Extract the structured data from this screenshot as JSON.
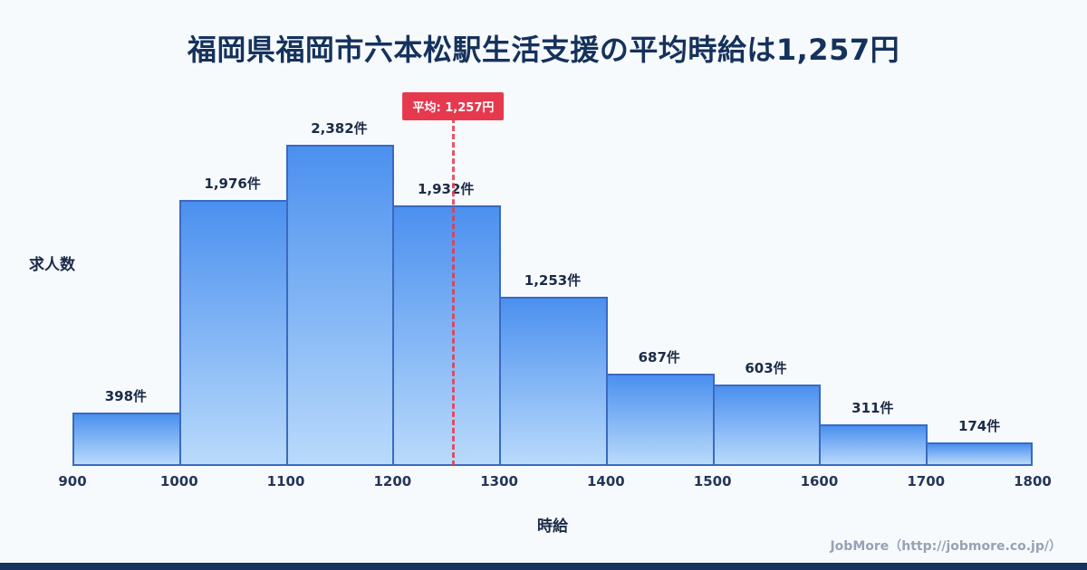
{
  "title": "福岡県福岡市六本松駅生活支援の平均時給は1,257円",
  "chart_data": {
    "type": "bar",
    "subtype": "histogram",
    "title": "福岡県福岡市六本松駅生活支援の平均時給は1,257円",
    "xlabel": "時給",
    "ylabel": "求人数",
    "categories": [
      "900",
      "1000",
      "1100",
      "1200",
      "1300",
      "1400",
      "1500",
      "1600",
      "1700",
      "1800"
    ],
    "x_range": [
      900,
      1800
    ],
    "values": [
      398,
      1976,
      2382,
      1932,
      1253,
      687,
      603,
      311,
      174
    ],
    "value_labels": [
      "398件",
      "1,976件",
      "2,382件",
      "1,932件",
      "1,253件",
      "687件",
      "603件",
      "311件",
      "174件"
    ],
    "ylim": [
      0,
      2600
    ],
    "grid": false,
    "legend": "none",
    "average": {
      "value": 1257,
      "label": "平均: 1,257円"
    },
    "colors": {
      "bar_top": "#4b90ef",
      "bar_bottom": "#b9dafb",
      "bar_border": "#3a6abf",
      "average_line": "#e6394d",
      "title_text": "#15325c",
      "label_text": "#1b2b47",
      "footer_text": "#97a2b4",
      "bottom_strip": "#16345e",
      "background": "#f7fafd"
    }
  },
  "footer": {
    "credit": "JobMore（http://jobmore.co.jp/）"
  }
}
